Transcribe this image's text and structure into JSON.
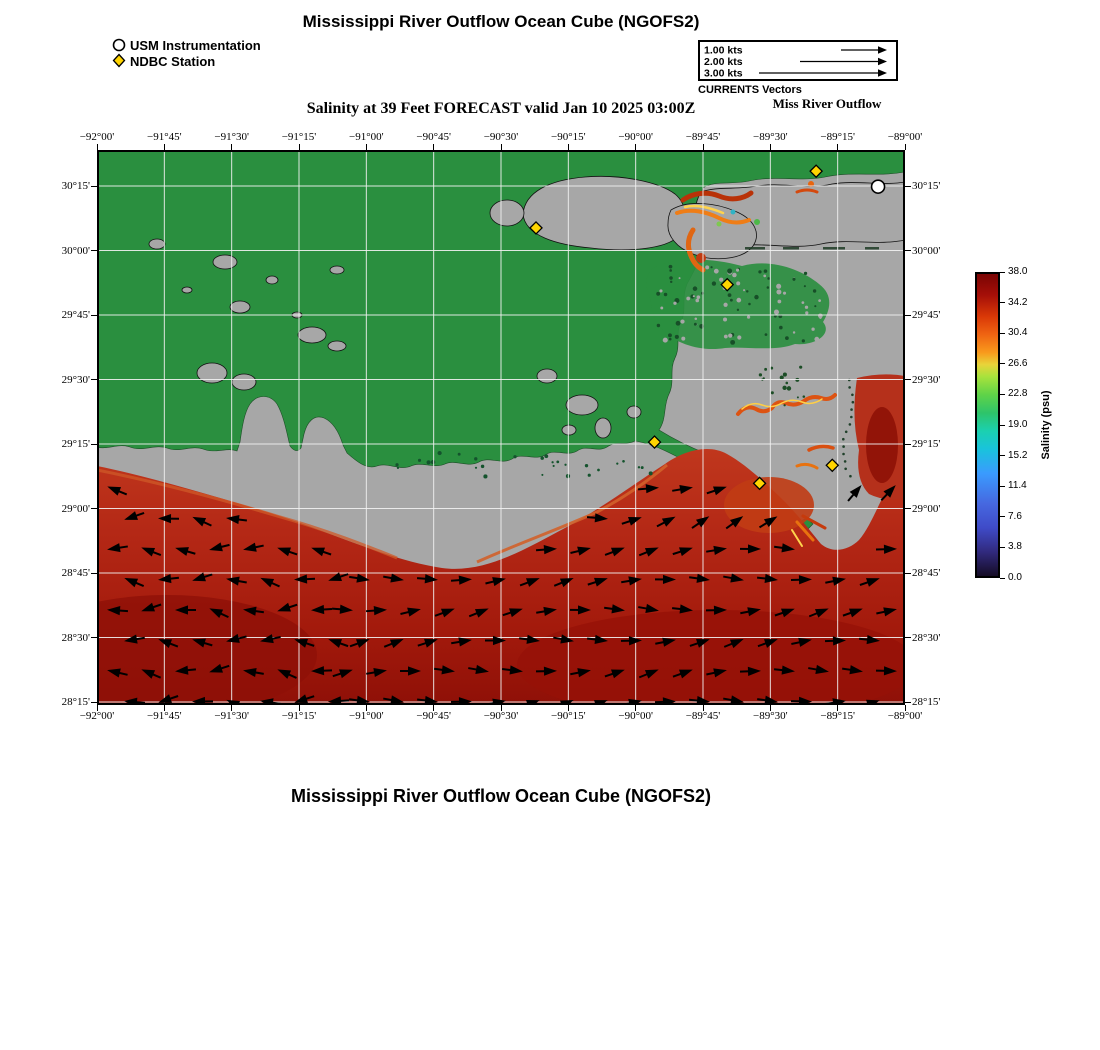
{
  "page": {
    "top_title": "Mississippi River Outflow Ocean Cube (NGOFS2)",
    "bottom_title": "Mississippi River Outflow Ocean Cube (NGOFS2)",
    "subtitle": "Salinity at 39 Feet FORECAST valid Jan 10 2025 03:00Z"
  },
  "marker_legend": {
    "usm_label": "USM Instrumentation",
    "ndbc_label": "NDBC Station"
  },
  "vector_legend": {
    "rows": [
      {
        "label": "1.00 kts",
        "speed": 1.0
      },
      {
        "label": "2.00 kts",
        "speed": 2.0
      },
      {
        "label": "3.00 kts",
        "speed": 3.0
      }
    ],
    "caption": "CURRENTS Vectors",
    "outflow_label": "Miss River Outflow"
  },
  "chart_data": {
    "type": "heatmap",
    "title": "Mississippi River Outflow Ocean Cube (NGOFS2)",
    "subtitle": "Salinity at 39 Feet FORECAST valid Jan 10 2025 03:00Z",
    "model": "NGOFS2",
    "variable": "Salinity",
    "units": "psu",
    "depth": "39 Feet",
    "valid_time": "Jan 10 2025 03:00Z",
    "lon_range": [
      -92.0,
      -89.0
    ],
    "lat_range": [
      28.24,
      30.39
    ],
    "x_ticks": [
      "−92°00'",
      "−91°45'",
      "−91°30'",
      "−91°15'",
      "−91°00'",
      "−90°45'",
      "−90°30'",
      "−90°15'",
      "−90°00'",
      "−89°45'",
      "−89°30'",
      "−89°15'",
      "−89°00'"
    ],
    "y_ticks_bottom_to_top": [
      "28°15'",
      "28°30'",
      "28°45'",
      "29°00'",
      "29°15'",
      "29°30'",
      "29°45'",
      "30°00'",
      "30°15'"
    ],
    "colorbar": {
      "label": "Salinity (psu)",
      "ticks_top_to_bottom": [
        "38.0",
        "34.2",
        "30.4",
        "26.6",
        "22.8",
        "19.0",
        "15.2",
        "11.4",
        "7.6",
        "3.8",
        "0.0"
      ],
      "min": 0.0,
      "max": 38.0
    },
    "grid_interval_minutes": 15,
    "gulf_salinity_typical_psu": 35,
    "currents": {
      "unit": "kts",
      "legend_speeds": [
        1.0,
        2.0,
        3.0
      ],
      "flow_summary": "Vectors plotted over deep Gulf water: westward flow on the western shelf, eastward/northeastward flow across the central and eastern shelf and east of the delta"
    },
    "stations": {
      "usm": [
        {
          "lon": -89.1,
          "lat": 30.25
        }
      ],
      "ndbc": [
        {
          "lon": -90.37,
          "lat": 30.09
        },
        {
          "lon": -89.33,
          "lat": 30.31
        },
        {
          "lon": -89.66,
          "lat": 29.87
        },
        {
          "lon": -89.93,
          "lat": 29.26
        },
        {
          "lon": -89.54,
          "lat": 29.1
        },
        {
          "lon": -89.27,
          "lat": 29.17
        }
      ]
    },
    "map_colors": {
      "land_mask_green": "#2a8f3f",
      "no_data_gray": "#a7a7a7",
      "gulf_red": "#b32715",
      "gulf_dark_red": "#8f1007",
      "plume_orange": "#ef7d16",
      "plume_yellow": "#ffd34d",
      "gridline_white": "#f2f2f2",
      "arrow_black": "#000000",
      "ndbc_yellow": "#ffd400",
      "usm_white": "#ffffff"
    }
  }
}
